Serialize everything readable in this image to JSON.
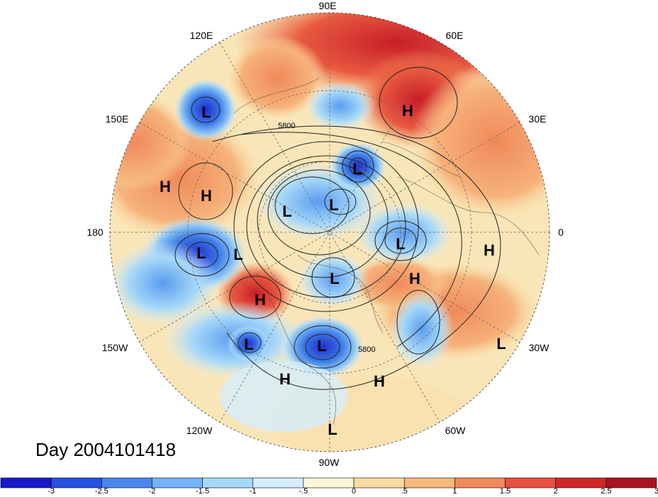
{
  "title": "Day 2004101418",
  "map": {
    "lon_labels": {
      "top": "90E",
      "bottom": "90W",
      "left": "180",
      "right": "0",
      "upper_left": "120E",
      "upper_right": "60E",
      "upper_left_2": "150E",
      "upper_right_2": "30E",
      "lower_left": "150W",
      "lower_right": "30W",
      "lower_left_2": "120W",
      "lower_right_2": "60W"
    },
    "contour_labels": [
      "5800",
      "5800"
    ],
    "systems": [
      {
        "id": "L",
        "name": "low"
      },
      {
        "id": "L"
      },
      {
        "id": "L"
      },
      {
        "id": "L"
      },
      {
        "id": "L"
      },
      {
        "id": "L"
      },
      {
        "id": "L"
      },
      {
        "id": "L"
      },
      {
        "id": "L"
      },
      {
        "id": "L"
      },
      {
        "id": "L"
      },
      {
        "id": "L"
      },
      {
        "id": "H"
      },
      {
        "id": "H"
      },
      {
        "id": "H"
      },
      {
        "id": "H"
      },
      {
        "id": "H"
      },
      {
        "id": "H"
      },
      {
        "id": "H"
      },
      {
        "id": "H"
      }
    ]
  },
  "colorbar": {
    "ticks": [
      "-3",
      "-2.5",
      "-2",
      "-1.5",
      "-1",
      "-.5",
      "0",
      ".5",
      "1",
      "1.5",
      "2",
      "2.5",
      "3"
    ],
    "colors": [
      "#1818c8",
      "#2850e0",
      "#4a86ec",
      "#74b4f4",
      "#a6d8f8",
      "#d6eefb",
      "#fbf6d8",
      "#f8dca4",
      "#f6ba7c",
      "#f08a5a",
      "#e85040",
      "#d02828",
      "#a81420"
    ]
  }
}
